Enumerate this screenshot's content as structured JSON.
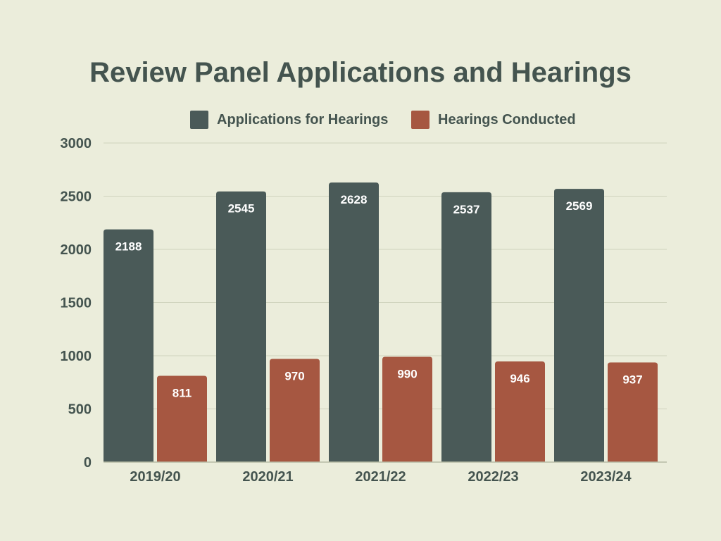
{
  "chart_data": {
    "type": "bar",
    "title": "Review Panel Applications and Hearings",
    "xlabel": "",
    "ylabel": "",
    "categories": [
      "2019/20",
      "2020/21",
      "2021/22",
      "2022/23",
      "2023/24"
    ],
    "series": [
      {
        "name": "Applications for Hearings",
        "color": "#4a5a58",
        "values": [
          2188,
          2545,
          2628,
          2537,
          2569
        ]
      },
      {
        "name": "Hearings Conducted",
        "color": "#a65741",
        "values": [
          811,
          970,
          990,
          946,
          937
        ]
      }
    ],
    "ylim": [
      0,
      3000
    ],
    "yticks": [
      0,
      500,
      1000,
      1500,
      2000,
      2500,
      3000
    ],
    "grid": true,
    "legend": "top-center",
    "data_labels": true
  }
}
